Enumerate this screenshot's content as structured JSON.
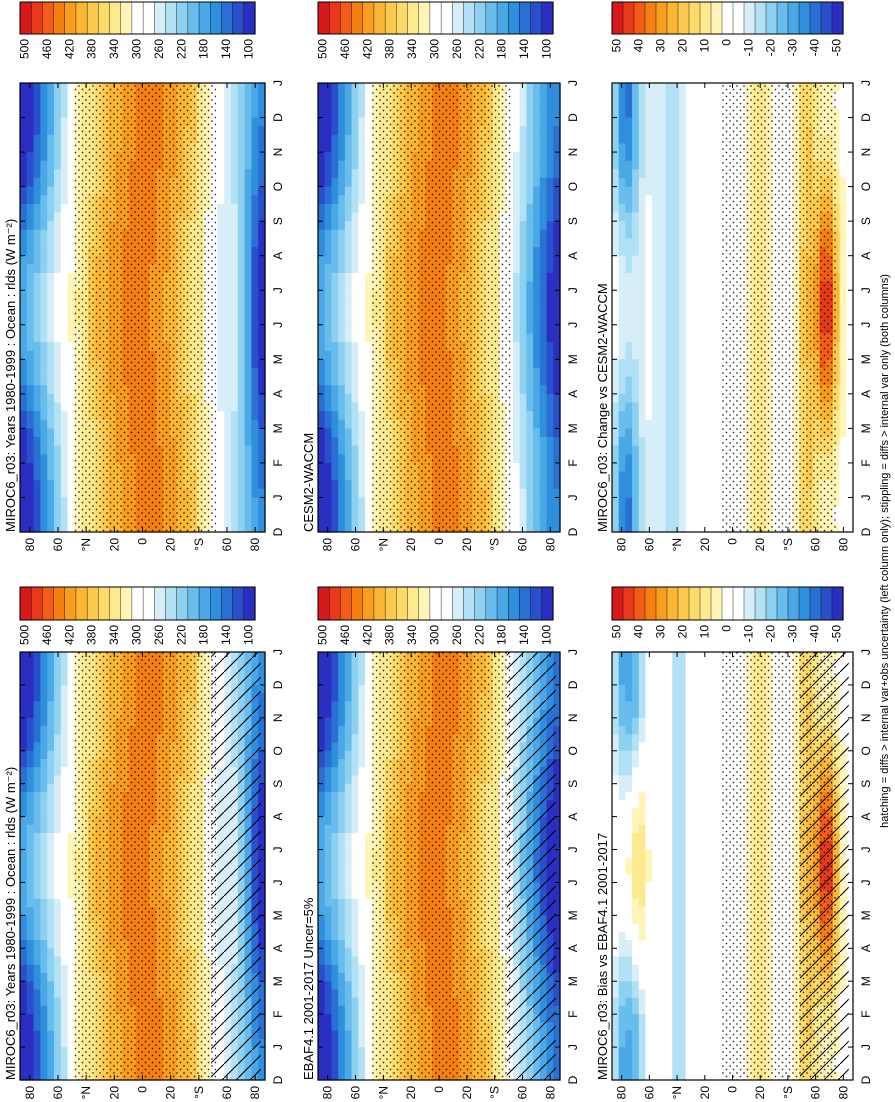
{
  "footnote": "hatching = diffs > internal var+obs uncertainty (left column only); stippling = diffs > internal var only (both columns)",
  "panels": [
    {
      "title": "MIROC6_r03: Years 1980-1999 : Ocean : rlds (W m⁻²)",
      "colorbar": "abs",
      "mode": "abs",
      "model": "miroc",
      "hatch": true
    },
    {
      "title": "EBAF4.1 2001-2017 Uncer=5%",
      "colorbar": "abs",
      "mode": "abs",
      "model": "obs",
      "hatch": true
    },
    {
      "title": "MIROC6_r03: Bias vs EBAF4.1 2001-2017",
      "colorbar": "diff",
      "mode": "diff",
      "model": "bias",
      "hatch": true
    },
    {
      "title": "MIROC6_r03: Years 1980-1999 : Ocean : rlds (W m⁻²)",
      "colorbar": "abs",
      "mode": "abs",
      "model": "miroc",
      "hatch": false
    },
    {
      "title": "CESM2-WACCM",
      "colorbar": "abs",
      "mode": "abs",
      "model": "cesm",
      "hatch": false
    },
    {
      "title": "MIROC6_r03: Change vs CESM2-WACCM",
      "colorbar": "diff",
      "mode": "diff",
      "model": "change",
      "hatch": false
    }
  ],
  "colorbars": {
    "abs": {
      "labels": [
        "500",
        "460",
        "420",
        "380",
        "340",
        "300",
        "260",
        "220",
        "180",
        "140",
        "100"
      ],
      "colors": [
        "#d7191c",
        "#e8391a",
        "#f25c16",
        "#f67f12",
        "#f99d1f",
        "#fbb636",
        "#fcca4e",
        "#fddb6b",
        "#feea8e",
        "#fff5b8",
        "#ffffff",
        "#ffffff",
        "#d7eef8",
        "#b2e0f5",
        "#8dd0f0",
        "#69bdec",
        "#4aa8e6",
        "#2f8fdd",
        "#2a6fd4",
        "#2a4fcb",
        "#2a2fc2"
      ]
    },
    "diff": {
      "labels": [
        "50",
        "40",
        "30",
        "20",
        "10",
        "0",
        "-10",
        "-20",
        "-30",
        "-40",
        "-50"
      ],
      "colors": [
        "#d7191c",
        "#e8391a",
        "#f25c16",
        "#f67f12",
        "#f99d1f",
        "#fbb636",
        "#fcca4e",
        "#fddb6b",
        "#feea8e",
        "#fff5b8",
        "#ffffff",
        "#ffffff",
        "#d7eef8",
        "#b2e0f5",
        "#8dd0f0",
        "#69bdec",
        "#4aa8e6",
        "#2f8fdd",
        "#2a6fd4",
        "#2a4fcb",
        "#2a2fc2"
      ]
    }
  },
  "chart_data": {
    "type": "heatmap",
    "x_ticks": [
      "D",
      "J",
      "F",
      "M",
      "A",
      "M",
      "J",
      "J",
      "A",
      "S",
      "O",
      "N",
      "D",
      "J"
    ],
    "y_ticks": [
      "80",
      "60",
      "°N",
      "20",
      "0",
      "20",
      "°S",
      "60",
      "80"
    ],
    "ylim": [
      -90,
      90
    ],
    "abs_range": [
      100,
      500
    ],
    "diff_range": [
      -50,
      50
    ],
    "abs_peak_values": {
      "tropics": 430,
      "high_latitude_winter": 150,
      "southern_ocean_70S": 280
    },
    "bias_peak_values": {
      "southern_ocean_70S_JAS": 45,
      "arctic_winter": -30
    },
    "change_peak_values": {
      "southern_ocean_70S_JAS": 45,
      "arctic_winter": -25
    }
  }
}
